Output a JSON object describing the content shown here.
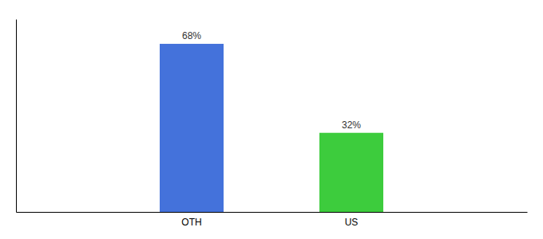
{
  "chart_data": {
    "type": "bar",
    "categories": [
      "OTH",
      "US"
    ],
    "values": [
      68,
      32
    ],
    "value_labels": [
      "68%",
      "32%"
    ],
    "data_labels": true,
    "colors": [
      "#4472db",
      "#3dcc3d"
    ],
    "ylim": [
      0,
      78
    ],
    "tick_labels": "x"
  }
}
